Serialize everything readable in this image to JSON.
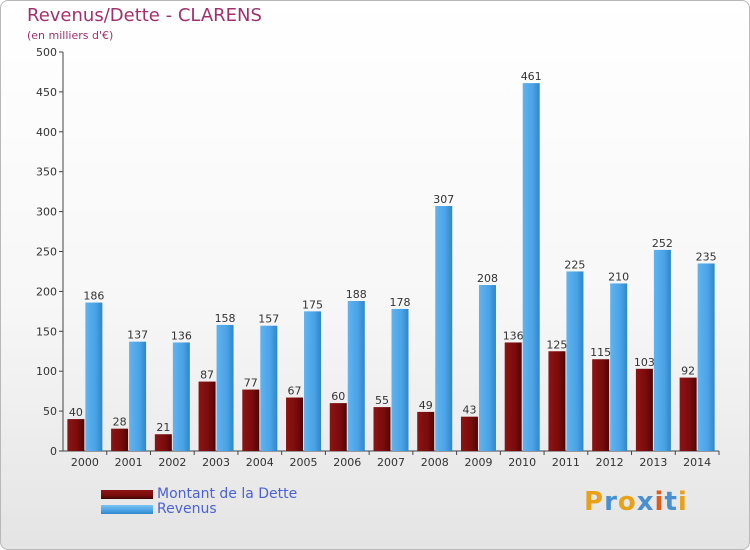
{
  "colors": {
    "title": "#a3306d",
    "dette": "#7a0c0c",
    "revenus": "#4aa3e6",
    "legend_text": "#4b61d4"
  },
  "logo": {
    "text": "Proxiti",
    "letter_colors": [
      "#e8a21a",
      "#4a8fd0",
      "#e8a21a",
      "#4a8fd0",
      "#e05a1a",
      "#4a8fd0",
      "#e8a21a"
    ]
  },
  "chart_data": {
    "type": "bar",
    "title": "Revenus/Dette - CLARENS",
    "subtitle": "(en milliers d'€)",
    "categories": [
      "2000",
      "2001",
      "2002",
      "2003",
      "2004",
      "2005",
      "2006",
      "2007",
      "2008",
      "2009",
      "2010",
      "2011",
      "2012",
      "2013",
      "2014"
    ],
    "series": [
      {
        "name": "Montant de la Dette",
        "values": [
          40,
          28,
          21,
          87,
          77,
          67,
          60,
          55,
          49,
          43,
          136,
          125,
          115,
          103,
          92
        ]
      },
      {
        "name": "Revenus",
        "values": [
          186,
          137,
          136,
          158,
          157,
          175,
          188,
          178,
          307,
          208,
          461,
          225,
          210,
          252,
          235
        ]
      }
    ],
    "ylim": [
      0,
      500
    ],
    "yticks": [
      0,
      50,
      100,
      150,
      200,
      250,
      300,
      350,
      400,
      450,
      500
    ],
    "legend_position": "bottom-left",
    "grid": false
  }
}
